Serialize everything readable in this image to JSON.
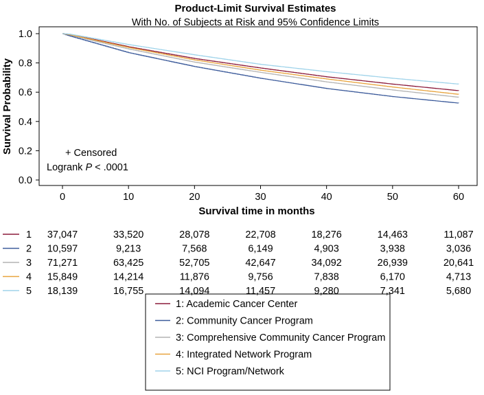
{
  "chart_data": {
    "type": "line",
    "title": "Product-Limit Survival Estimates",
    "subtitle": "With No. of Subjects at Risk and 95% Confidence Limits",
    "xlabel": "Survival time in months",
    "ylabel": "Survival Probability",
    "xlim": [
      0,
      60
    ],
    "ylim": [
      0,
      1
    ],
    "xticks": [
      "0",
      "10",
      "20",
      "30",
      "40",
      "50",
      "60"
    ],
    "yticks": [
      "0.0",
      "0.2",
      "0.4",
      "0.6",
      "0.8",
      "1.0"
    ],
    "annotations": {
      "censored": "+ Censored",
      "logrank_prefix": "Logrank ",
      "logrank_p": "P",
      "logrank_suffix": " < .0001"
    },
    "risk_times": [
      0,
      10,
      20,
      30,
      40,
      50,
      60
    ],
    "series": [
      {
        "id": "1",
        "name": "1: Academic Cancer Center",
        "color": "#8b1a3a",
        "x": [
          0,
          1,
          10,
          20,
          30,
          40,
          50,
          60
        ],
        "y": [
          1.0,
          0.995,
          0.91,
          0.83,
          0.765,
          0.705,
          0.655,
          0.61
        ],
        "at_risk": [
          "37,047",
          "33,520",
          "28,078",
          "22,708",
          "18,276",
          "14,463",
          "11,087"
        ]
      },
      {
        "id": "2",
        "name": "2: Community Cancer Program",
        "color": "#3b5a9a",
        "x": [
          0,
          1,
          10,
          20,
          30,
          40,
          50,
          60
        ],
        "y": [
          1.0,
          0.985,
          0.87,
          0.775,
          0.695,
          0.625,
          0.57,
          0.525
        ],
        "at_risk": [
          "10,597",
          "9,213",
          "7,568",
          "6,149",
          "4,903",
          "3,938",
          "3,036"
        ]
      },
      {
        "id": "3",
        "name": "3: Comprehensive Community Cancer Program",
        "color": "#b3b3b3",
        "x": [
          0,
          1,
          10,
          20,
          30,
          40,
          50,
          60
        ],
        "y": [
          1.0,
          0.99,
          0.895,
          0.805,
          0.735,
          0.67,
          0.615,
          0.565
        ],
        "at_risk": [
          "71,271",
          "63,425",
          "52,705",
          "42,647",
          "34,092",
          "26,939",
          "20,641"
        ]
      },
      {
        "id": "4",
        "name": "4: Integrated Network Program",
        "color": "#e8a33d",
        "x": [
          0,
          1,
          10,
          20,
          30,
          40,
          50,
          60
        ],
        "y": [
          1.0,
          0.993,
          0.905,
          0.82,
          0.75,
          0.69,
          0.635,
          0.585
        ],
        "at_risk": [
          "15,849",
          "14,214",
          "11,876",
          "9,756",
          "7,838",
          "6,170",
          "4,713"
        ]
      },
      {
        "id": "5",
        "name": "5: NCI Program/Network",
        "color": "#9fd3ea",
        "x": [
          0,
          1,
          10,
          20,
          30,
          40,
          50,
          60
        ],
        "y": [
          1.0,
          0.997,
          0.925,
          0.855,
          0.79,
          0.74,
          0.695,
          0.655
        ],
        "at_risk": [
          "18,139",
          "16,755",
          "14,094",
          "11,457",
          "9,280",
          "7,341",
          "5,680"
        ]
      }
    ]
  }
}
